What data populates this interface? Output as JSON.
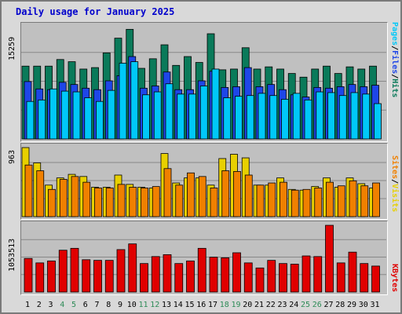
{
  "title": "Daily usage for January 2025",
  "legend": {
    "panel1": [
      {
        "text": "Pages",
        "color": "#00c8f8"
      },
      {
        "text": "Files",
        "color": "#1e46e8"
      },
      {
        "text": "Hits",
        "color": "#0a7a5a"
      }
    ],
    "panel2": [
      {
        "text": "Sites",
        "color": "#f08000"
      },
      {
        "text": "Visits",
        "color": "#e8d000"
      }
    ],
    "panel3": [
      {
        "text": "KBytes",
        "color": "#e00000"
      }
    ],
    "separator": "/"
  },
  "chart_data": [
    {
      "type": "bar",
      "title": "Daily usage for January 2025",
      "ymax_label": "15259",
      "ylim": [
        0,
        15259
      ],
      "grid": true,
      "categories": [
        "1",
        "2",
        "3",
        "4",
        "5",
        "6",
        "7",
        "8",
        "9",
        "10",
        "11",
        "12",
        "13",
        "14",
        "15",
        "16",
        "17",
        "18",
        "19",
        "20",
        "21",
        "22",
        "23",
        "24",
        "25",
        "26",
        "27",
        "28",
        "29",
        "30",
        "31"
      ],
      "weekend_days": [
        "4",
        "5",
        "11",
        "12",
        "18",
        "19",
        "25",
        "26"
      ],
      "series": [
        {
          "name": "Hits",
          "color": "#0a7a5a",
          "values": [
            9900,
            9900,
            9900,
            10800,
            10500,
            9500,
            9700,
            11700,
            13700,
            14900,
            9600,
            10900,
            12800,
            10000,
            11200,
            10400,
            14300,
            9400,
            9500,
            12400,
            9500,
            9800,
            9500,
            8900,
            8400,
            9500,
            9900,
            8900,
            9800,
            9500,
            9900
          ]
        },
        {
          "name": "Files",
          "color": "#1e46e8",
          "values": [
            7800,
            6800,
            6700,
            7700,
            7400,
            6900,
            6700,
            7900,
            8600,
            11200,
            6900,
            7200,
            9100,
            6700,
            6700,
            7900,
            9200,
            7000,
            7100,
            9700,
            7100,
            7400,
            6700,
            6000,
            5700,
            7000,
            6900,
            7100,
            7400,
            7100,
            7300
          ]
        },
        {
          "name": "Pages",
          "color": "#00c8f8",
          "values": [
            5100,
            5300,
            6800,
            6500,
            6400,
            5600,
            5100,
            6600,
            10300,
            10500,
            6000,
            6400,
            7500,
            6100,
            6100,
            7200,
            9500,
            5600,
            5800,
            5900,
            6200,
            5900,
            5400,
            6200,
            5300,
            6400,
            6300,
            5900,
            6300,
            6100,
            4800
          ]
        }
      ]
    },
    {
      "type": "bar",
      "ymax_label": "963",
      "ylim": [
        0,
        963
      ],
      "grid": true,
      "categories": [
        "1",
        "2",
        "3",
        "4",
        "5",
        "6",
        "7",
        "8",
        "9",
        "10",
        "11",
        "12",
        "13",
        "14",
        "15",
        "16",
        "17",
        "18",
        "19",
        "20",
        "21",
        "22",
        "23",
        "24",
        "25",
        "26",
        "27",
        "28",
        "29",
        "30",
        "31"
      ],
      "series": [
        {
          "name": "Visits",
          "color": "#e8d000",
          "values": [
            963,
            750,
            440,
            540,
            590,
            560,
            410,
            410,
            580,
            450,
            410,
            400,
            880,
            470,
            540,
            540,
            440,
            810,
            870,
            820,
            440,
            440,
            540,
            380,
            370,
            420,
            540,
            410,
            540,
            460,
            400
          ]
        },
        {
          "name": "Sites",
          "color": "#f08000",
          "values": [
            720,
            640,
            380,
            520,
            560,
            480,
            400,
            400,
            450,
            410,
            400,
            420,
            670,
            440,
            610,
            560,
            400,
            640,
            630,
            580,
            440,
            470,
            480,
            370,
            380,
            400,
            480,
            430,
            500,
            430,
            470
          ]
        }
      ]
    },
    {
      "type": "bar",
      "ymax_label": "1053513",
      "ylim": [
        0,
        1053513
      ],
      "grid": true,
      "categories": [
        "1",
        "2",
        "3",
        "4",
        "5",
        "6",
        "7",
        "8",
        "9",
        "10",
        "11",
        "12",
        "13",
        "14",
        "15",
        "16",
        "17",
        "18",
        "19",
        "20",
        "21",
        "22",
        "23",
        "24",
        "25",
        "26",
        "27",
        "28",
        "29",
        "30",
        "31"
      ],
      "series": [
        {
          "name": "KBytes",
          "color": "#e00000",
          "values": [
            530000,
            460000,
            490000,
            660000,
            690000,
            510000,
            500000,
            500000,
            670000,
            760000,
            450000,
            560000,
            590000,
            450000,
            490000,
            690000,
            550000,
            540000,
            620000,
            460000,
            380000,
            500000,
            450000,
            440000,
            570000,
            560000,
            1053513,
            460000,
            630000,
            450000,
            410000
          ]
        }
      ]
    }
  ]
}
